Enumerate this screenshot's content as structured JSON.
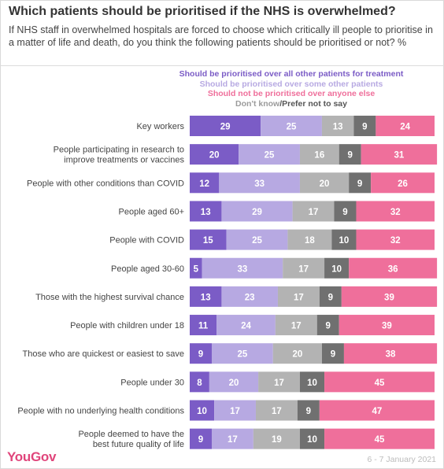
{
  "title": "Which patients should be prioritised if the NHS is overwhelmed?",
  "subtitle": "If NHS staff in overwhelmed hospitals are forced to choose which critically ill people to prioritise in a matter of life and death, do you think the following patients should be prioritised or not? %",
  "legend": {
    "all": "Should be prioritised over all other patients for treatment",
    "some": "Should be prioritised over some other patients",
    "none": "Should not be prioritised over anyone else",
    "dk_a": "Don't know",
    "dk_b": "/Prefer not to say"
  },
  "source": "YouGov",
  "date": "6 - 7 January 2021",
  "colors": {
    "all": "#7b5cc6",
    "some": "#b7a9e2",
    "dk": "#b3b3b3",
    "pns": "#707070",
    "none": "#ef6f9b",
    "legend_dk": "#9b9b9b",
    "legend_pns": "#555555"
  },
  "chart_data": {
    "type": "bar",
    "orientation": "horizontal",
    "stacked": true,
    "categories": [
      [
        "Key workers"
      ],
      [
        "People participating in research to",
        "improve treatments or vaccines"
      ],
      [
        "People with other conditions than COVID"
      ],
      [
        "People aged 60+"
      ],
      [
        "People with COVID"
      ],
      [
        "People aged 30-60"
      ],
      [
        "Those with the highest survival chance"
      ],
      [
        "People with children under 18"
      ],
      [
        "Those who are quickest or easiest to save"
      ],
      [
        "People under 30"
      ],
      [
        "People with no underlying health conditions"
      ],
      [
        "People deemed to have the",
        "best future quality of life"
      ]
    ],
    "series": [
      {
        "key": "all",
        "name": "Should be prioritised over all other patients for treatment",
        "values": [
          29,
          20,
          12,
          13,
          15,
          5,
          13,
          11,
          9,
          8,
          10,
          9
        ]
      },
      {
        "key": "some",
        "name": "Should be prioritised over some other patients",
        "values": [
          25,
          25,
          33,
          29,
          25,
          33,
          23,
          24,
          25,
          20,
          17,
          17
        ]
      },
      {
        "key": "dk",
        "name": "Don't know",
        "values": [
          13,
          16,
          20,
          17,
          18,
          17,
          17,
          17,
          20,
          17,
          17,
          19
        ]
      },
      {
        "key": "pns",
        "name": "Prefer not to say",
        "values": [
          9,
          9,
          9,
          9,
          10,
          10,
          9,
          9,
          9,
          10,
          9,
          10
        ]
      },
      {
        "key": "none",
        "name": "Should not be prioritised over anyone else",
        "values": [
          24,
          31,
          26,
          32,
          32,
          36,
          39,
          39,
          38,
          45,
          47,
          45
        ]
      }
    ],
    "xlim": [
      0,
      100
    ],
    "legend_position": "top",
    "grid": false
  }
}
